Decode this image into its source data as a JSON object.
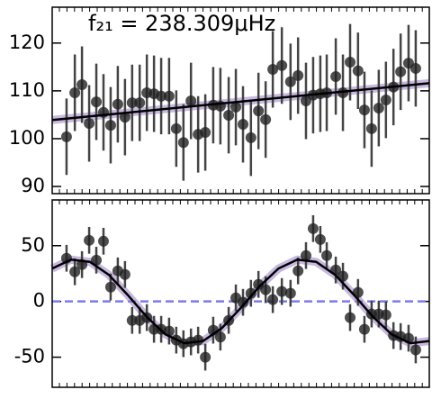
{
  "chart_data": [
    {
      "type": "errorbar",
      "annotation": "f₂₁ = 238.309μHz",
      "xlim": [
        0,
        100
      ],
      "ylim": [
        88.5,
        127.5
      ],
      "yticks": [
        90,
        100,
        110,
        120
      ],
      "x": [
        3.8,
        6.0,
        7.9,
        9.8,
        11.7,
        13.6,
        15.5,
        17.4,
        19.3,
        21.2,
        23.2,
        25.1,
        27.0,
        28.9,
        31.0,
        32.9,
        34.8,
        36.8,
        38.7,
        40.6,
        42.7,
        44.6,
        46.8,
        48.7,
        50.6,
        52.7,
        54.7,
        56.6,
        58.5,
        60.9,
        63.2,
        65.2,
        67.3,
        69.2,
        71.1,
        72.8,
        75.2,
        77.1,
        79.0,
        81.1,
        82.8,
        84.7,
        86.6,
        88.5,
        90.5,
        92.4,
        94.5,
        96.4
      ],
      "values": [
        100.4,
        109.6,
        111.3,
        103.2,
        107.7,
        105.5,
        102.8,
        107.2,
        104.5,
        107.5,
        107.5,
        109.6,
        109.4,
        108.9,
        108.9,
        102.1,
        99.2,
        107.9,
        100.9,
        101.3,
        107.0,
        106.8,
        104.9,
        106.6,
        103.0,
        100.2,
        105.8,
        104.0,
        114.5,
        115.3,
        111.9,
        113.2,
        107.9,
        109.1,
        109.4,
        109.6,
        113.0,
        109.6,
        116.0,
        114.2,
        106.0,
        102.1,
        106.4,
        108.1,
        110.8,
        114.0,
        115.8,
        114.7
      ],
      "errors": [
        8,
        8,
        8,
        8,
        8,
        8,
        8,
        8,
        8,
        8,
        8,
        8,
        8,
        8,
        8,
        8,
        8,
        8,
        8,
        8,
        8,
        8,
        8,
        8,
        8,
        8,
        8,
        8,
        8,
        8,
        8,
        8,
        8,
        8,
        8,
        8,
        8,
        8,
        8,
        8,
        8,
        8,
        8,
        8,
        8,
        8,
        8,
        8
      ],
      "color": "#222222",
      "fit": {
        "x": [
          0,
          100
        ],
        "values": [
          103.9,
          111.6
        ],
        "color": "#000000",
        "band_color": "#9b7fc7"
      }
    },
    {
      "type": "errorbar",
      "xlim": [
        0,
        100
      ],
      "ylim": [
        -77,
        91
      ],
      "yticks": [
        -50,
        0,
        50
      ],
      "x": [
        3.8,
        6.0,
        7.9,
        9.8,
        11.7,
        13.6,
        15.5,
        17.4,
        19.3,
        21.2,
        23.2,
        25.1,
        27.0,
        28.9,
        31.0,
        32.9,
        34.8,
        36.8,
        38.7,
        40.6,
        42.7,
        44.6,
        46.8,
        48.7,
        50.6,
        52.7,
        54.7,
        56.6,
        58.5,
        60.9,
        63.2,
        65.2,
        67.3,
        69.2,
        71.1,
        72.8,
        75.2,
        77.1,
        79.0,
        81.1,
        82.8,
        84.7,
        86.6,
        88.5,
        90.5,
        92.4,
        94.5,
        96.4
      ],
      "values": [
        38.7,
        26.6,
        33,
        54.8,
        37,
        54,
        12.9,
        27.4,
        24.2,
        -17,
        -17,
        -14.5,
        -25,
        -25,
        -26.6,
        -34.7,
        -37.9,
        -36.3,
        -34.7,
        -50,
        -25.8,
        -32,
        -17,
        3.2,
        -0.8,
        7.3,
        15.3,
        10.5,
        1.6,
        8.9,
        7.3,
        27.4,
        41.1,
        65.3,
        55.6,
        41.1,
        28.2,
        22.6,
        -14.5,
        8.1,
        -25,
        -11.3,
        -11.3,
        -12.1,
        -30.6,
        -31.5,
        -33,
        -43.5
      ],
      "errors": [
        12,
        12,
        12,
        12,
        12,
        12,
        12,
        12,
        12,
        12,
        12,
        12,
        12,
        12,
        12,
        12,
        12,
        12,
        12,
        12,
        12,
        12,
        12,
        12,
        12,
        12,
        12,
        12,
        12,
        12,
        12,
        12,
        12,
        12,
        12,
        12,
        12,
        12,
        12,
        12,
        12,
        12,
        12,
        12,
        12,
        12,
        12,
        12
      ],
      "color": "#222222",
      "hline": {
        "value": 0,
        "color": "#7b7bea"
      },
      "fit": {
        "x": [
          0,
          5,
          10,
          15,
          20,
          25,
          30,
          35,
          40,
          45,
          50,
          55,
          60,
          65,
          70,
          75,
          80,
          85,
          90,
          95,
          100
        ],
        "values": [
          29.5,
          37.5,
          35.5,
          23.9,
          5.9,
          -13.6,
          -29.5,
          -37.5,
          -35.5,
          -23.9,
          -5.9,
          13.6,
          29.5,
          37.5,
          35.5,
          23.9,
          5.9,
          -13.6,
          -29.5,
          -37.5,
          -35.5
        ],
        "color": "#000000",
        "band_color": "#9b7fc7"
      }
    }
  ]
}
